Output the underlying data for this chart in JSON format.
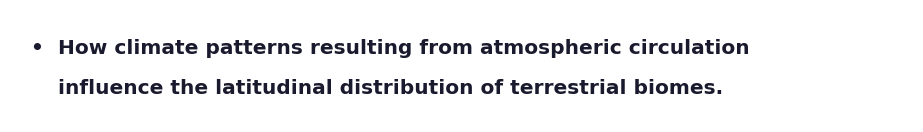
{
  "background_color": "#ffffff",
  "bullet_char": "•",
  "line1": "How climate patterns resulting from atmospheric circulation",
  "line2": "influence the latitudinal distribution of terrestrial biomes.",
  "text_color": "#1a1a2e",
  "font_size": 14.5,
  "font_weight": "bold",
  "font_family": "DejaVu Sans",
  "fig_width": 9.23,
  "fig_height": 1.32,
  "dpi": 100
}
